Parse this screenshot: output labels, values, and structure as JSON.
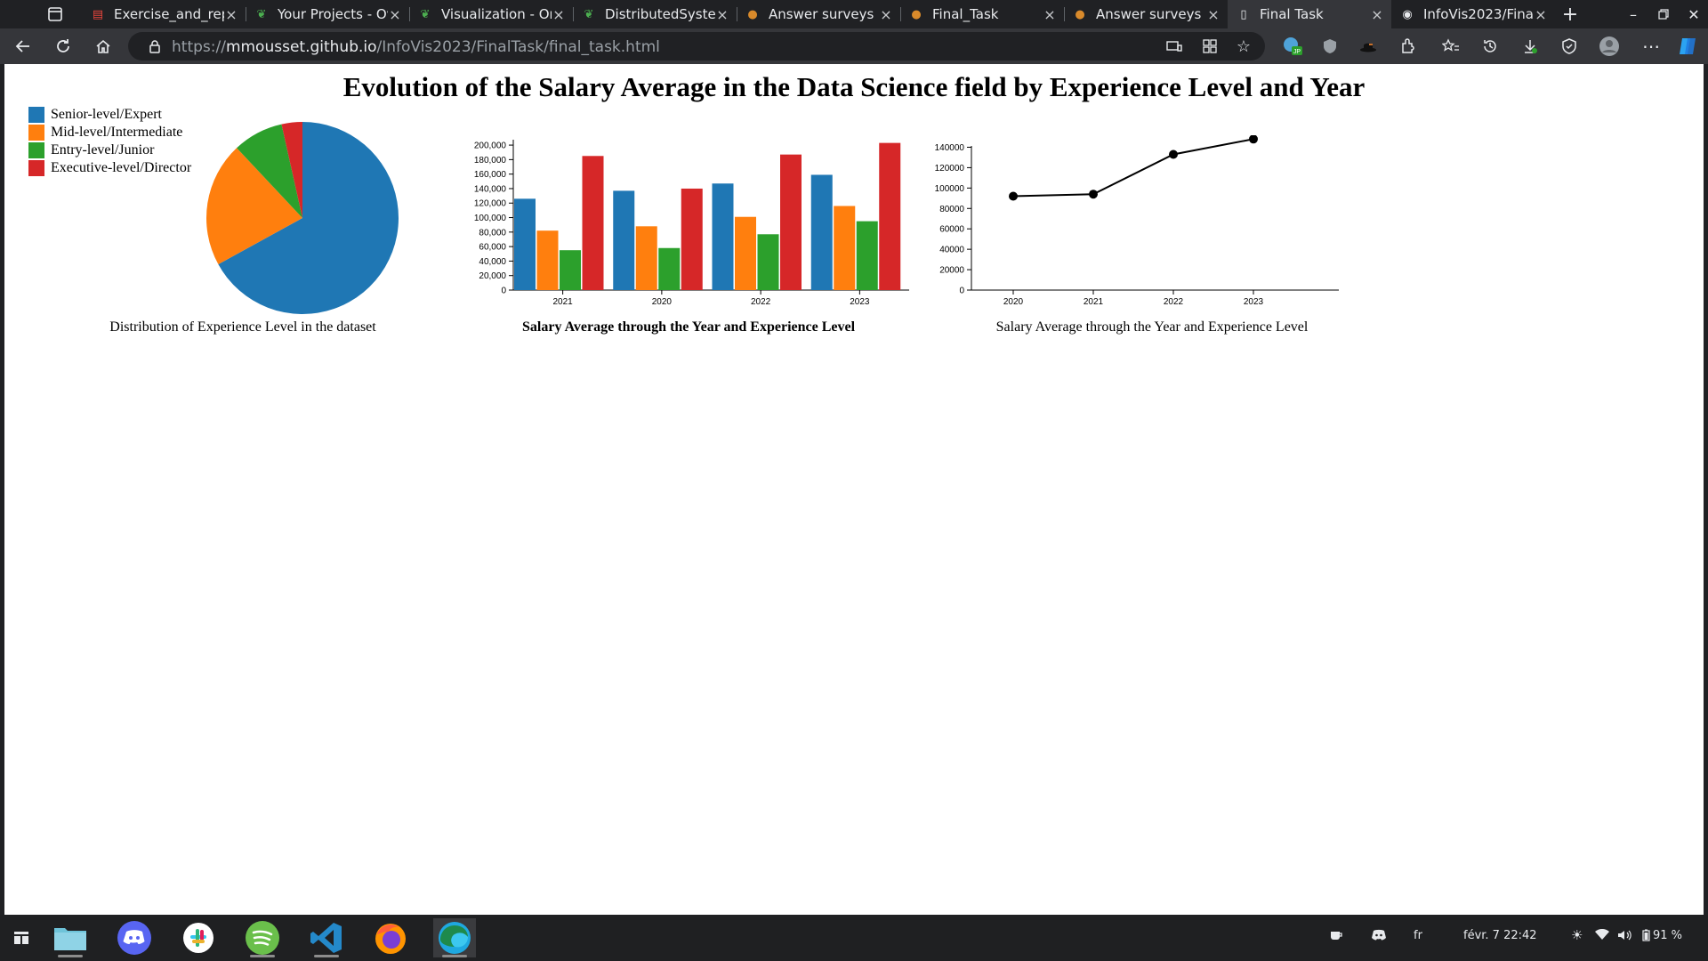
{
  "browser": {
    "tabs": [
      {
        "title": "Exercise_and_rep",
        "icon": "pdf-icon",
        "active": false
      },
      {
        "title": "Your Projects - Ov",
        "icon": "leaf-icon",
        "active": false
      },
      {
        "title": "Visualization - On",
        "icon": "leaf-icon",
        "active": false
      },
      {
        "title": "DistributedSyster",
        "icon": "leaf-icon",
        "active": false
      },
      {
        "title": "Answer surveys",
        "icon": "survey-icon",
        "active": false
      },
      {
        "title": "Final_Task",
        "icon": "survey-icon",
        "active": false
      },
      {
        "title": "Answer surveys",
        "icon": "survey-icon",
        "active": false
      },
      {
        "title": "Final Task",
        "icon": "document-icon",
        "active": true
      },
      {
        "title": "InfoVis2023/Fina",
        "icon": "github-icon",
        "active": false
      }
    ],
    "url_prefix": "https://",
    "url_host": "mmousset.github.io",
    "url_path": "/InfoVis2023/FinalTask/final_task.html",
    "profile_badge": "JP"
  },
  "page": {
    "title": "Evolution of the Salary Average in the Data Science field by Experience Level and Year",
    "pie_caption": "Distribution of Experience Level in the dataset",
    "bar_caption": "Salary Average through the Year and Experience Level",
    "line_caption": "Salary Average through the Year and Experience Level",
    "legend": [
      {
        "label": "Senior-level/Expert",
        "color": "#1f77b4"
      },
      {
        "label": "Mid-level/Intermediate",
        "color": "#ff7f0e"
      },
      {
        "label": "Entry-level/Junior",
        "color": "#2ca02c"
      },
      {
        "label": "Executive-level/Director",
        "color": "#d62728"
      }
    ]
  },
  "chart_data": [
    {
      "type": "pie",
      "categories": [
        "Senior-level/Expert",
        "Mid-level/Intermediate",
        "Entry-level/Junior",
        "Executive-level/Director"
      ],
      "values": [
        67,
        21,
        8.5,
        3.5
      ],
      "colors": [
        "#1f77b4",
        "#ff7f0e",
        "#2ca02c",
        "#d62728"
      ],
      "title": "Distribution of Experience Level in the dataset"
    },
    {
      "type": "bar",
      "categories": [
        "2021",
        "2020",
        "2022",
        "2023"
      ],
      "series": [
        {
          "name": "Senior-level/Expert",
          "color": "#1f77b4",
          "values": [
            126000,
            137000,
            147000,
            159000
          ]
        },
        {
          "name": "Mid-level/Intermediate",
          "color": "#ff7f0e",
          "values": [
            82000,
            88000,
            101000,
            116000
          ]
        },
        {
          "name": "Entry-level/Junior",
          "color": "#2ca02c",
          "values": [
            55000,
            58000,
            77000,
            95000
          ]
        },
        {
          "name": "Executive-level/Director",
          "color": "#d62728",
          "values": [
            185000,
            140000,
            187000,
            203000
          ]
        }
      ],
      "yticks": [
        0,
        20000,
        40000,
        60000,
        80000,
        100000,
        120000,
        140000,
        160000,
        180000,
        200000
      ],
      "ytick_labels": [
        "0",
        "20,000",
        "40,000",
        "60,000",
        "80,000",
        "100,000",
        "120,000",
        "140,000",
        "160,000",
        "180,000",
        "200,000"
      ],
      "ylim": [
        0,
        205000
      ],
      "title": "Salary Average through the Year and Experience Level"
    },
    {
      "type": "line",
      "x": [
        "2020",
        "2021",
        "2022",
        "2023"
      ],
      "series": [
        {
          "values": [
            92000,
            94000,
            133000,
            148000
          ],
          "color": "#000000"
        }
      ],
      "yticks": [
        0,
        20000,
        40000,
        60000,
        80000,
        100000,
        120000,
        140000
      ],
      "ytick_labels": [
        "0",
        "20000",
        "40000",
        "60000",
        "80000",
        "100000",
        "120000",
        "140000"
      ],
      "ylim": [
        0,
        150000
      ],
      "title": "Salary Average through the Year and Experience Level"
    }
  ],
  "taskbar": {
    "apps": [
      "files-icon",
      "discord-icon",
      "slack-icon",
      "spotify-icon",
      "vscode-icon",
      "firefox-icon",
      "edge-icon"
    ],
    "keyboard_layout": "fr",
    "clock": "févr. 7  22:42",
    "battery": "91 %"
  }
}
